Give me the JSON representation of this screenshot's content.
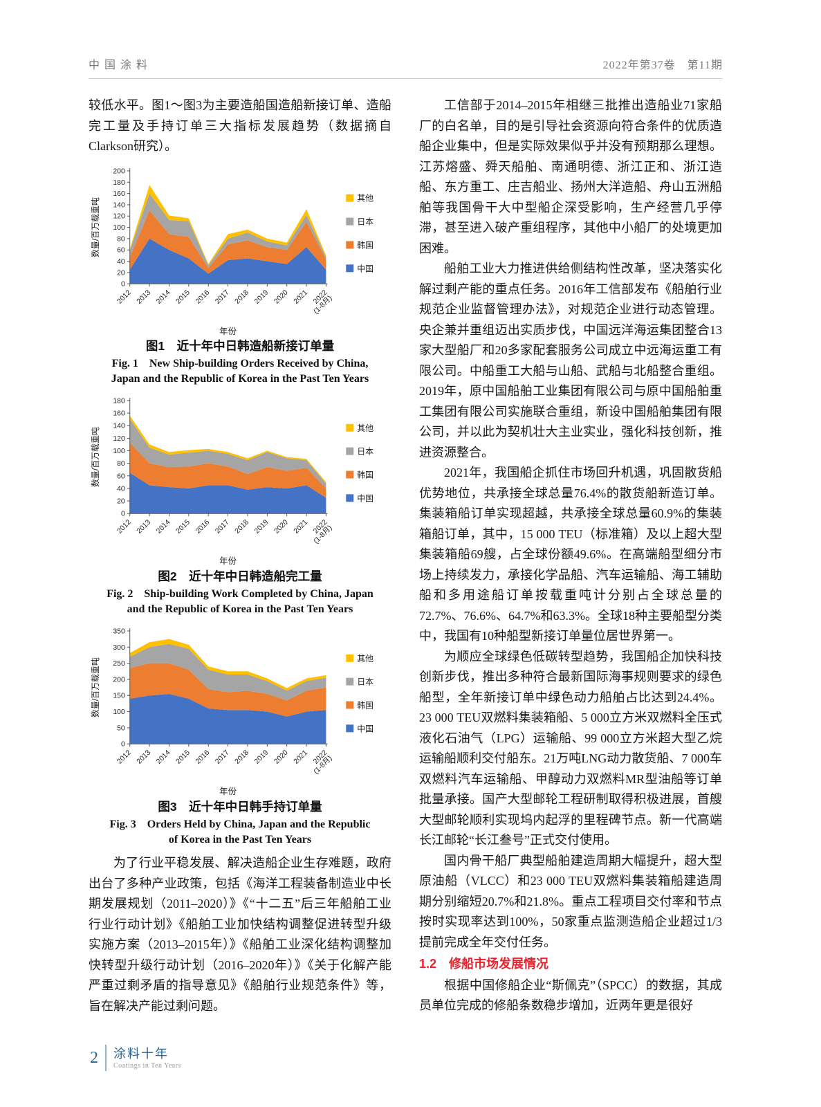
{
  "header": {
    "journal": "中国涂料",
    "issue": "2022年第37卷　第11期"
  },
  "left_column": {
    "intro": "较低水平。图1～图3为主要造船国造船新接订单、造船完工量及手持订单三大指标发展趋势（数据摘自Clarkson研究）。",
    "policy_paragraph": "为了行业平稳发展、解决造船企业生存难题，政府出台了多种产业政策，包括《海洋工程装备制造业中长期发展规划（2011–2020）》《“十二五”后三年船舶工业行业行动计划》《船舶工业加快结构调整促进转型升级实施方案（2013–2015年）》《船舶工业深化结构调整加快转型升级行动计划（2016–2020年）》《关于化解产能严重过剩矛盾的指导意见》《船舶行业规范条件》等，旨在解决产能过剩问题。"
  },
  "figures": [
    {
      "caption_zh": "图1　近十年中日韩造船新接订单量",
      "caption_en": "Fig. 1　New Ship-building Orders Received by China, Japan and the Republic of Korea in the Past Ten Years"
    },
    {
      "caption_zh": "图2　近十年中日韩造船完工量",
      "caption_en": "Fig. 2　Ship-building Work Completed by China, Japan and the Republic of Korea in the Past Ten Years"
    },
    {
      "caption_zh": "图3　近十年中日韩手持订单量",
      "caption_en": "Fig. 3　Orders Held by China, Japan and the Republic of Korea in the Past Ten Years"
    }
  ],
  "right_column": {
    "paragraphs": [
      "工信部于2014–2015年相继三批推出造船业71家船厂的白名单，目的是引导社会资源向符合条件的优质造船企业集中，但是实际效果似乎并没有预期那么理想。江苏熔盛、舜天船舶、南通明德、浙江正和、浙江造船、东方重工、庄吉船业、扬州大洋造船、舟山五洲船舶等我国骨干大中型船企深受影响，生产经营几乎停滞，甚至进入破产重组程序，其他中小船厂的处境更加困难。",
      "船舶工业大力推进供给侧结构性改革，坚决落实化解过剩产能的重点任务。2016年工信部发布《船舶行业规范企业监督管理办法》，对规范企业进行动态管理。央企兼并重组迈出实质步伐，中国远洋海运集团整合13家大型船厂和20多家配套服务公司成立中远海运重工有限公司。中船重工大船与山船、武船与北船整合重组。2019年，原中国船舶工业集团有限公司与原中国船舶重工集团有限公司实施联合重组，新设中国船舶集团有限公司，并以此为契机壮大主业实业，强化科技创新，推进资源整合。",
      "2021年，我国船企抓住市场回升机遇，巩固散货船优势地位，共承接全球总量76.4%的散货船新造订单。集装箱船订单实现超越，共承接全球总量60.9%的集装箱船订单，其中，15 000 TEU（标准箱）及以上超大型集装箱船69艘，占全球份额49.6%。在高端船型细分市场上持续发力，承接化学品船、汽车运输船、海工辅助船和多用途船订单按载重吨计分别占全球总量的72.7%、76.6%、64.7%和63.3%。全球18种主要船型分类中，我国有10种船型新接订单量位居世界第一。",
      "为顺应全球绿色低碳转型趋势，我国船企加快科技创新步伐，推出多种符合最新国际海事规则要求的绿色船型，全年新接订单中绿色动力船舶占比达到24.4%。23 000 TEU双燃料集装箱船、5 000立方米双燃料全压式液化石油气（LPG）运输船、99 000立方米超大型乙烷运输船顺利交付船东。21万吨LNG动力散货船、7 000车双燃料汽车运输船、甲醇动力双燃料MR型油船等订单批量承接。国产大型邮轮工程研制取得积极进展，首艘大型邮轮顺利实现坞内起浮的里程碑节点。新一代高端长江邮轮“长江叁号”正式交付使用。",
      "国内骨干船厂典型船舶建造周期大幅提升，超大型原油船（VLCC）和23 000 TEU双燃料集装箱船建造周期分别缩短20.7%和21.8%。重点工程项目交付率和节点按时实现率达到100%，50家重点监测造船企业超过1/3提前完成全年交付任务。"
    ],
    "section_heading": "1.2　修船市场发展情况",
    "after_heading_paragraph": "根据中国修船企业“斯佩克”（SPCC）的数据，其成员单位完成的修船条数稳步增加，近两年更是很好"
  },
  "footer": {
    "page_number": "2",
    "brand_title": "涂料十年",
    "brand_subtitle": "Coatings in Ten Years"
  },
  "chart_data": [
    {
      "type": "area",
      "stacked": true,
      "title": "近十年中日韩造船新接订单量",
      "xlabel": "年份",
      "ylabel": "数量/百万载重吨",
      "ylim": [
        0,
        200
      ],
      "ystep": 20,
      "legend_position": "right",
      "categories": [
        "2012",
        "2013",
        "2014",
        "2015",
        "2016",
        "2017",
        "2018",
        "2019",
        "2020",
        "2021",
        "2022\n(1-8月)"
      ],
      "series": [
        {
          "name": "中国",
          "color": "#4472C4",
          "values": [
            25,
            80,
            60,
            45,
            18,
            42,
            45,
            40,
            35,
            65,
            25
          ]
        },
        {
          "name": "韩国",
          "color": "#ED7D31",
          "values": [
            22,
            50,
            28,
            38,
            10,
            28,
            32,
            25,
            25,
            45,
            18
          ]
        },
        {
          "name": "日本",
          "color": "#A5A5A5",
          "values": [
            12,
            30,
            25,
            28,
            5,
            10,
            14,
            10,
            8,
            12,
            4
          ]
        },
        {
          "name": "其他",
          "color": "#FFC000",
          "values": [
            3,
            15,
            8,
            5,
            2,
            8,
            5,
            5,
            5,
            10,
            3
          ]
        }
      ]
    },
    {
      "type": "area",
      "stacked": true,
      "title": "近十年中日韩造船完工量",
      "xlabel": "年份",
      "ylabel": "数量/百万载重吨",
      "ylim": [
        0,
        180
      ],
      "ystep": 20,
      "legend_position": "right",
      "categories": [
        "2012",
        "2013",
        "2014",
        "2015",
        "2016",
        "2017",
        "2018",
        "2019",
        "2020",
        "2021",
        "2022\n(1-8月)"
      ],
      "series": [
        {
          "name": "中国",
          "color": "#4472C4",
          "values": [
            65,
            45,
            42,
            40,
            45,
            45,
            38,
            42,
            40,
            45,
            25
          ]
        },
        {
          "name": "韩国",
          "color": "#ED7D31",
          "values": [
            48,
            35,
            32,
            35,
            35,
            30,
            25,
            32,
            28,
            28,
            15
          ]
        },
        {
          "name": "日本",
          "color": "#A5A5A5",
          "values": [
            38,
            25,
            20,
            22,
            20,
            20,
            22,
            24,
            20,
            12,
            8
          ]
        },
        {
          "name": "其他",
          "color": "#FFC000",
          "values": [
            5,
            5,
            4,
            4,
            3,
            3,
            3,
            2,
            2,
            2,
            2
          ]
        }
      ]
    },
    {
      "type": "area",
      "stacked": true,
      "title": "近十年中日韩手持订单量",
      "xlabel": "年份",
      "ylabel": "数量/百万载重吨",
      "ylim": [
        0,
        350
      ],
      "ystep": 50,
      "legend_position": "right",
      "categories": [
        "2012",
        "2013",
        "2014",
        "2015",
        "2016",
        "2017",
        "2018",
        "2019",
        "2020",
        "2021",
        "2022\n(1-8月)"
      ],
      "series": [
        {
          "name": "中国",
          "color": "#4472C4",
          "values": [
            140,
            150,
            155,
            140,
            110,
            105,
            105,
            100,
            85,
            100,
            105
          ]
        },
        {
          "name": "韩国",
          "color": "#ED7D31",
          "values": [
            95,
            100,
            95,
            90,
            60,
            55,
            60,
            55,
            50,
            65,
            70
          ]
        },
        {
          "name": "日本",
          "color": "#A5A5A5",
          "values": [
            35,
            50,
            60,
            65,
            60,
            55,
            50,
            40,
            30,
            30,
            30
          ]
        },
        {
          "name": "其他",
          "color": "#FFC000",
          "values": [
            12,
            15,
            15,
            12,
            10,
            10,
            10,
            8,
            8,
            8,
            8
          ]
        }
      ]
    }
  ]
}
